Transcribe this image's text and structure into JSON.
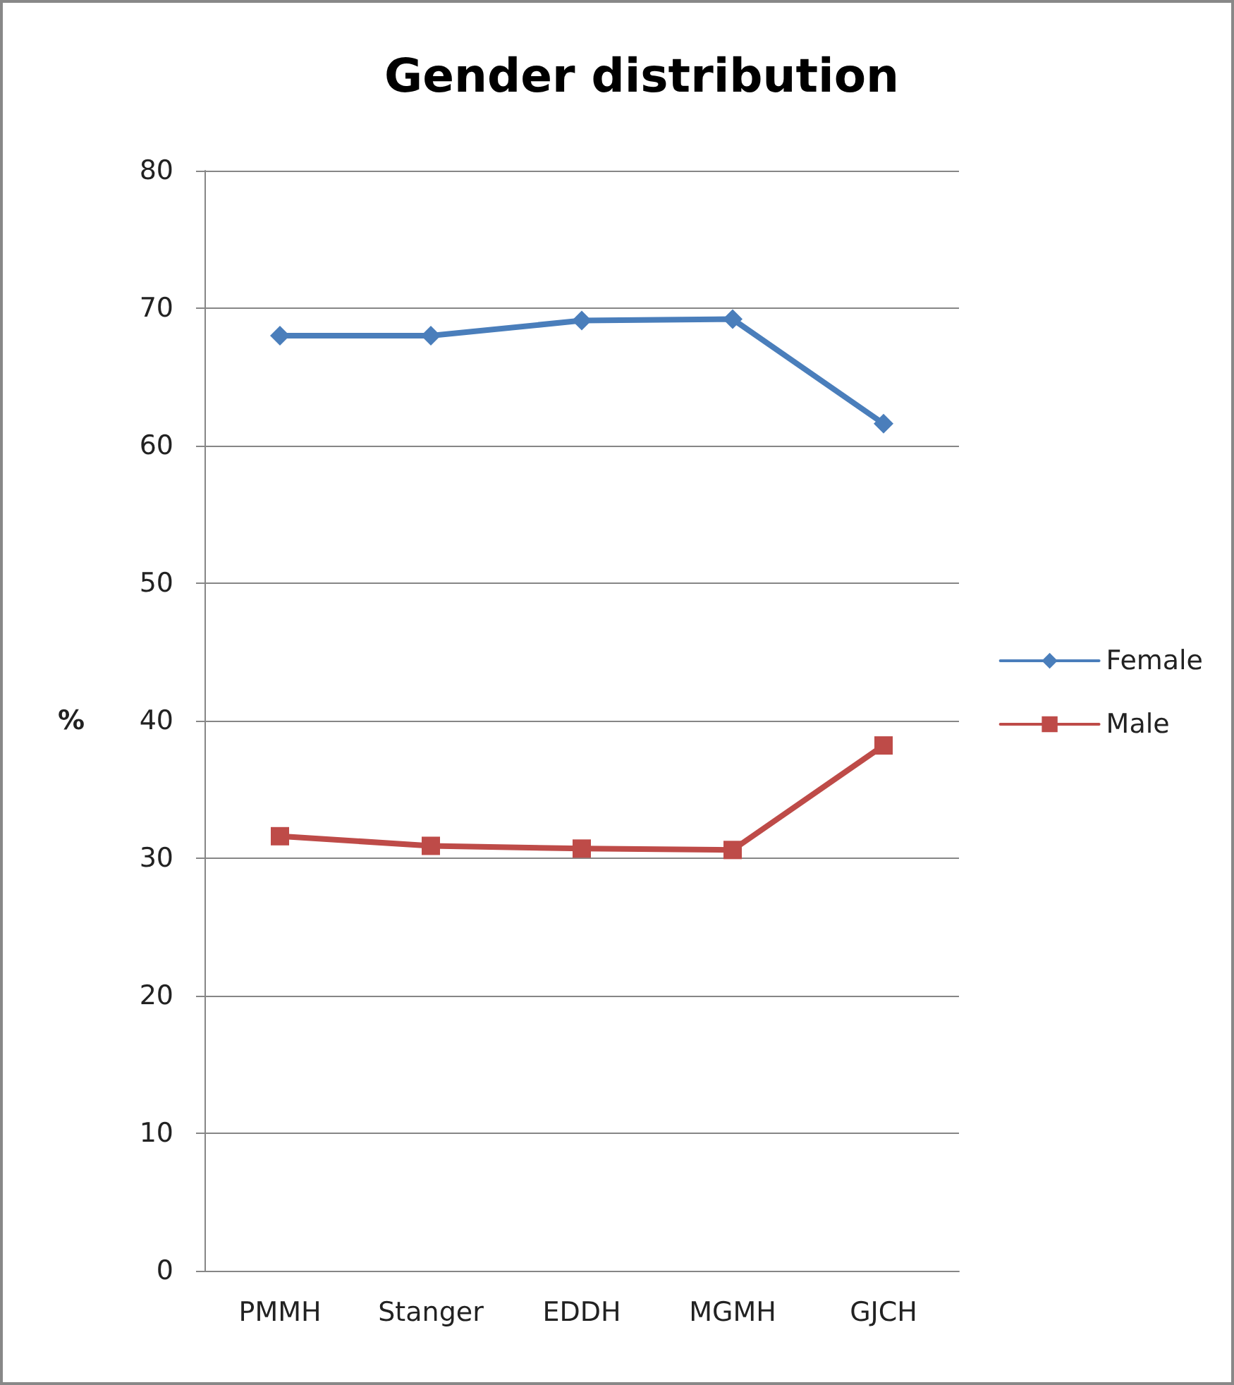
{
  "chart_data": {
    "type": "line",
    "title": "Gender distribution",
    "ylabel": "%",
    "categories": [
      "PMMH",
      "Stanger",
      "EDDH",
      "MGMH",
      "GJCH"
    ],
    "series": [
      {
        "name": "Female",
        "color": "#4a7ebb",
        "marker": "diamond",
        "values": [
          68,
          68,
          69.1,
          69.2,
          61.6
        ]
      },
      {
        "name": "Male",
        "color": "#be4b48",
        "marker": "square",
        "values": [
          31.6,
          30.9,
          30.7,
          30.6,
          38.2
        ]
      }
    ],
    "ylim": [
      0,
      80
    ],
    "yticks": [
      0,
      10,
      20,
      30,
      40,
      50,
      60,
      70,
      80
    ],
    "grid": "y",
    "legend": "right",
    "line_style": "solid"
  }
}
